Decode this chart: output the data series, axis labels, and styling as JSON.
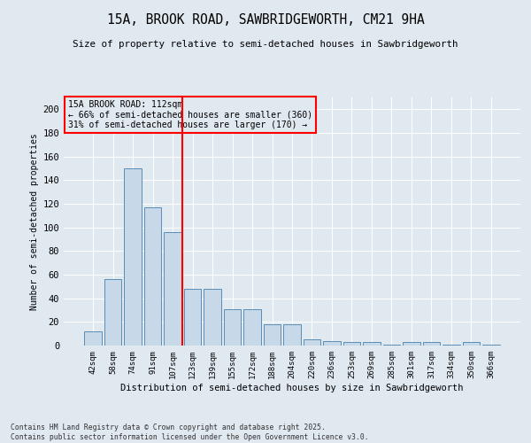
{
  "title": "15A, BROOK ROAD, SAWBRIDGEWORTH, CM21 9HA",
  "subtitle": "Size of property relative to semi-detached houses in Sawbridgeworth",
  "xlabel": "Distribution of semi-detached houses by size in Sawbridgeworth",
  "ylabel": "Number of semi-detached properties",
  "categories": [
    "42sqm",
    "58sqm",
    "74sqm",
    "91sqm",
    "107sqm",
    "123sqm",
    "139sqm",
    "155sqm",
    "172sqm",
    "188sqm",
    "204sqm",
    "220sqm",
    "236sqm",
    "253sqm",
    "269sqm",
    "285sqm",
    "301sqm",
    "317sqm",
    "334sqm",
    "350sqm",
    "366sqm"
  ],
  "values": [
    12,
    56,
    150,
    117,
    96,
    48,
    48,
    31,
    31,
    18,
    18,
    5,
    4,
    3,
    3,
    1,
    3,
    3,
    1,
    3,
    1
  ],
  "bar_color": "#c7d9e8",
  "bar_edge_color": "#5a8db5",
  "vline_x": 4.5,
  "vline_color": "red",
  "annotation_title": "15A BROOK ROAD: 112sqm",
  "annotation_line1": "← 66% of semi-detached houses are smaller (360)",
  "annotation_line2": "31% of semi-detached houses are larger (170) →",
  "annotation_box_color": "red",
  "ylim": [
    0,
    210
  ],
  "yticks": [
    0,
    20,
    40,
    60,
    80,
    100,
    120,
    140,
    160,
    180,
    200
  ],
  "background_color": "#e0e8f0",
  "footer_line1": "Contains HM Land Registry data © Crown copyright and database right 2025.",
  "footer_line2": "Contains public sector information licensed under the Open Government Licence v3.0."
}
